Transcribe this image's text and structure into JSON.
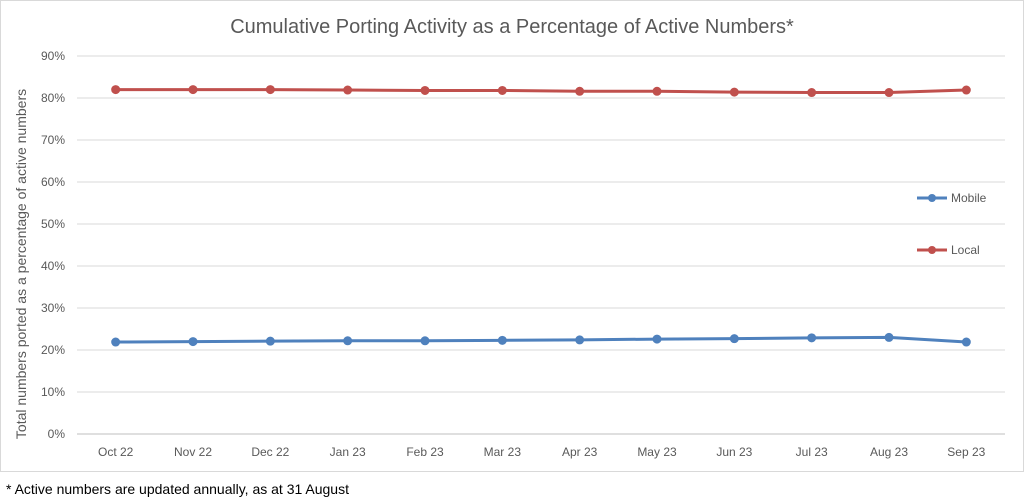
{
  "chart_data": {
    "type": "line",
    "title": "Cumulative Porting Activity as a Percentage of Active Numbers*",
    "ylabel": "Total numbers ported as a percentage of active numbers",
    "xlabel": "",
    "categories": [
      "Oct 22",
      "Nov 22",
      "Dec 22",
      "Jan 23",
      "Feb 23",
      "Mar 23",
      "Apr 23",
      "May 23",
      "Jun 23",
      "Jul 23",
      "Aug 23",
      "Sep 23"
    ],
    "ylim": [
      0,
      90
    ],
    "yticks": [
      "0%",
      "10%",
      "20%",
      "30%",
      "40%",
      "50%",
      "60%",
      "70%",
      "80%",
      "90%"
    ],
    "grid": true,
    "legend_position": "right",
    "series": [
      {
        "name": "Mobile",
        "color": "#4F81BD",
        "values": [
          21.9,
          22.0,
          22.1,
          22.2,
          22.2,
          22.3,
          22.4,
          22.6,
          22.7,
          22.9,
          23.0,
          21.9
        ]
      },
      {
        "name": "Local",
        "color": "#C0504D",
        "values": [
          82.0,
          82.0,
          82.0,
          81.9,
          81.8,
          81.8,
          81.6,
          81.6,
          81.4,
          81.3,
          81.3,
          81.9
        ]
      }
    ]
  },
  "footnote": "* Active numbers are updated annually, as at 31 August"
}
